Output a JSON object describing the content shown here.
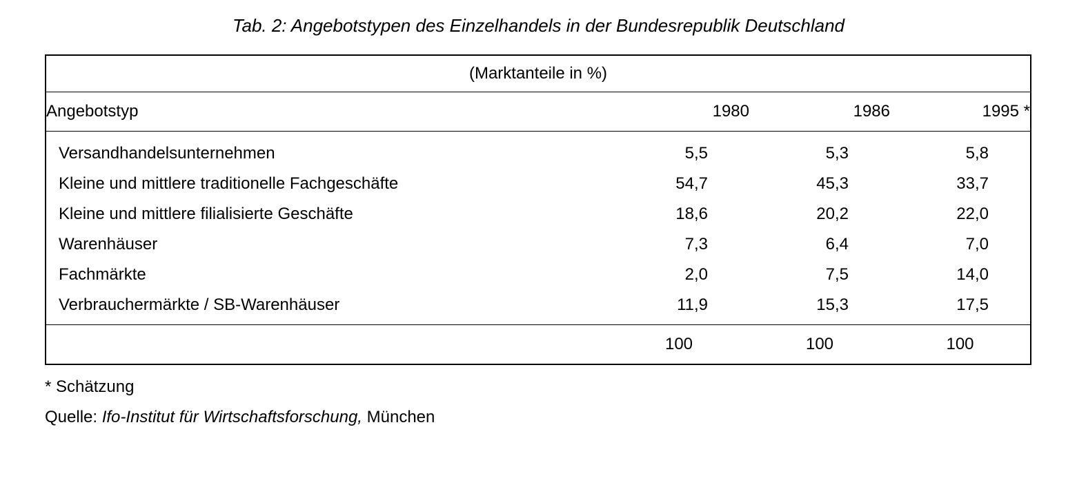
{
  "title": "Tab. 2: Angebotstypen des Einzelhandels in der Bundesrepublik Deutschland",
  "table": {
    "caption": "(Marktanteile in %)",
    "header": {
      "label": "Angebotstyp",
      "years": [
        "1980",
        "1986",
        "1995 *"
      ]
    },
    "rows": [
      {
        "label": "Versandhandelsunternehmen",
        "y1980": "5,5",
        "y1986": "5,3",
        "y1995": "5,8"
      },
      {
        "label": "Kleine und mittlere traditionelle Fachgeschäfte",
        "y1980": "54,7",
        "y1986": "45,3",
        "y1995": "33,7"
      },
      {
        "label": "Kleine und mittlere filialisierte Geschäfte",
        "y1980": "18,6",
        "y1986": "20,2",
        "y1995": "22,0"
      },
      {
        "label": "Warenhäuser",
        "y1980": "7,3",
        "y1986": "6,4",
        "y1995": "7,0"
      },
      {
        "label": "Fachmärkte",
        "y1980": "2,0",
        "y1986": "7,5",
        "y1995": "14,0"
      },
      {
        "label": "Verbrauchermärkte / SB-Warenhäuser",
        "y1980": "11,9",
        "y1986": "15,3",
        "y1995": "17,5"
      }
    ],
    "totals": {
      "y1980": "100",
      "y1986": "100",
      "y1995": "100"
    },
    "column_widths_pct": [
      48,
      17,
      17,
      18
    ],
    "border_color": "#000000",
    "background_color": "#ffffff",
    "font_size_pt": 18
  },
  "footnote": "* Schätzung",
  "source": {
    "prefix": "Quelle:",
    "italic": "Ifo-Institut für Wirtschaftsforschung,",
    "suffix": " München"
  }
}
